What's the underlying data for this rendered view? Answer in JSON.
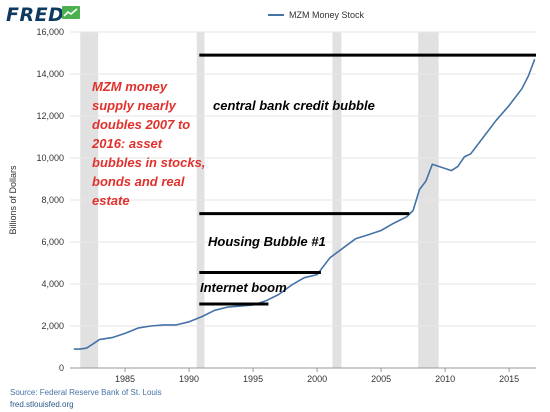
{
  "header": {
    "logo_text": "FRED",
    "logo_mark_icon": "line-chart-icon"
  },
  "footer": {
    "source": "Source: Federal Reserve Bank of St. Louis",
    "url": "fred.stlouisfed.org"
  },
  "colors": {
    "series": "#4572a7",
    "recession": "#e1e1e1",
    "annotation_red": "#e0312c",
    "annotation_black": "#000000",
    "grid": "#e6e6e6",
    "logo": "#0f3a5f",
    "logo_mark": "#4caf50"
  },
  "chart_data": {
    "type": "line",
    "title": "",
    "xlabel": "",
    "ylabel": "Billions of Dollars",
    "xlim": [
      1980.7,
      2017.1
    ],
    "ylim": [
      0,
      16000
    ],
    "x_ticks": [
      1985,
      1990,
      1995,
      2000,
      2005,
      2010,
      2015
    ],
    "y_ticks": [
      0,
      2000,
      4000,
      6000,
      8000,
      10000,
      12000,
      14000,
      16000
    ],
    "y_tick_labels": [
      "0",
      "2,000",
      "4,000",
      "6,000",
      "8,000",
      "10,000",
      "12,000",
      "14,000",
      "16,000"
    ],
    "grid": "horizontal",
    "legend_position": "top-center",
    "series": [
      {
        "name": "MZM Money Stock",
        "x": [
          1981.0,
          1981.5,
          1982.0,
          1982.5,
          1983.0,
          1984.0,
          1985.0,
          1986.0,
          1987.0,
          1988.0,
          1989.0,
          1990.0,
          1991.0,
          1992.0,
          1993.0,
          1994.0,
          1995.0,
          1996.0,
          1997.0,
          1998.0,
          1999.0,
          2000.0,
          2001.0,
          2002.0,
          2003.0,
          2004.0,
          2005.0,
          2006.0,
          2007.0,
          2007.5,
          2008.0,
          2008.5,
          2009.0,
          2009.5,
          2010.0,
          2010.5,
          2011.0,
          2011.5,
          2012.0,
          2013.0,
          2014.0,
          2015.0,
          2016.0,
          2016.5,
          2017.0
        ],
        "values": [
          900,
          900,
          950,
          1150,
          1350,
          1450,
          1650,
          1900,
          2000,
          2050,
          2050,
          2200,
          2450,
          2750,
          2900,
          2950,
          3000,
          3200,
          3500,
          3950,
          4300,
          4450,
          5250,
          5700,
          6150,
          6350,
          6550,
          6900,
          7200,
          7500,
          8500,
          8900,
          9700,
          9600,
          9500,
          9400,
          9600,
          10050,
          10200,
          11000,
          11800,
          12500,
          13300,
          13900,
          14700
        ]
      }
    ],
    "recessions": [
      [
        1981.5,
        1982.9
      ],
      [
        1990.6,
        1991.2
      ],
      [
        2001.2,
        2001.9
      ],
      [
        2007.9,
        2009.5
      ]
    ],
    "annotation_lines": [
      {
        "x0": 1990.8,
        "x1": 2017.1,
        "y": 14900
      },
      {
        "x0": 1990.8,
        "x1": 2007.2,
        "y": 7350
      },
      {
        "x0": 1990.8,
        "x1": 2000.3,
        "y": 4550
      },
      {
        "x0": 1990.8,
        "x1": 1996.2,
        "y": 3050
      }
    ],
    "annotations": [
      {
        "text": "MZM money supply nearly doubles 2007 to 2016: asset bubbles in stocks, bonds and real estate",
        "lines": [
          "MZM money",
          "supply nearly",
          "doubles 2007 to",
          "2016: asset",
          "bubbles in stocks,",
          "bonds and real",
          "estate"
        ]
      },
      {
        "text": "central bank credit bubble"
      },
      {
        "text": "Housing Bubble #1"
      },
      {
        "text": "Internet boom"
      }
    ]
  }
}
